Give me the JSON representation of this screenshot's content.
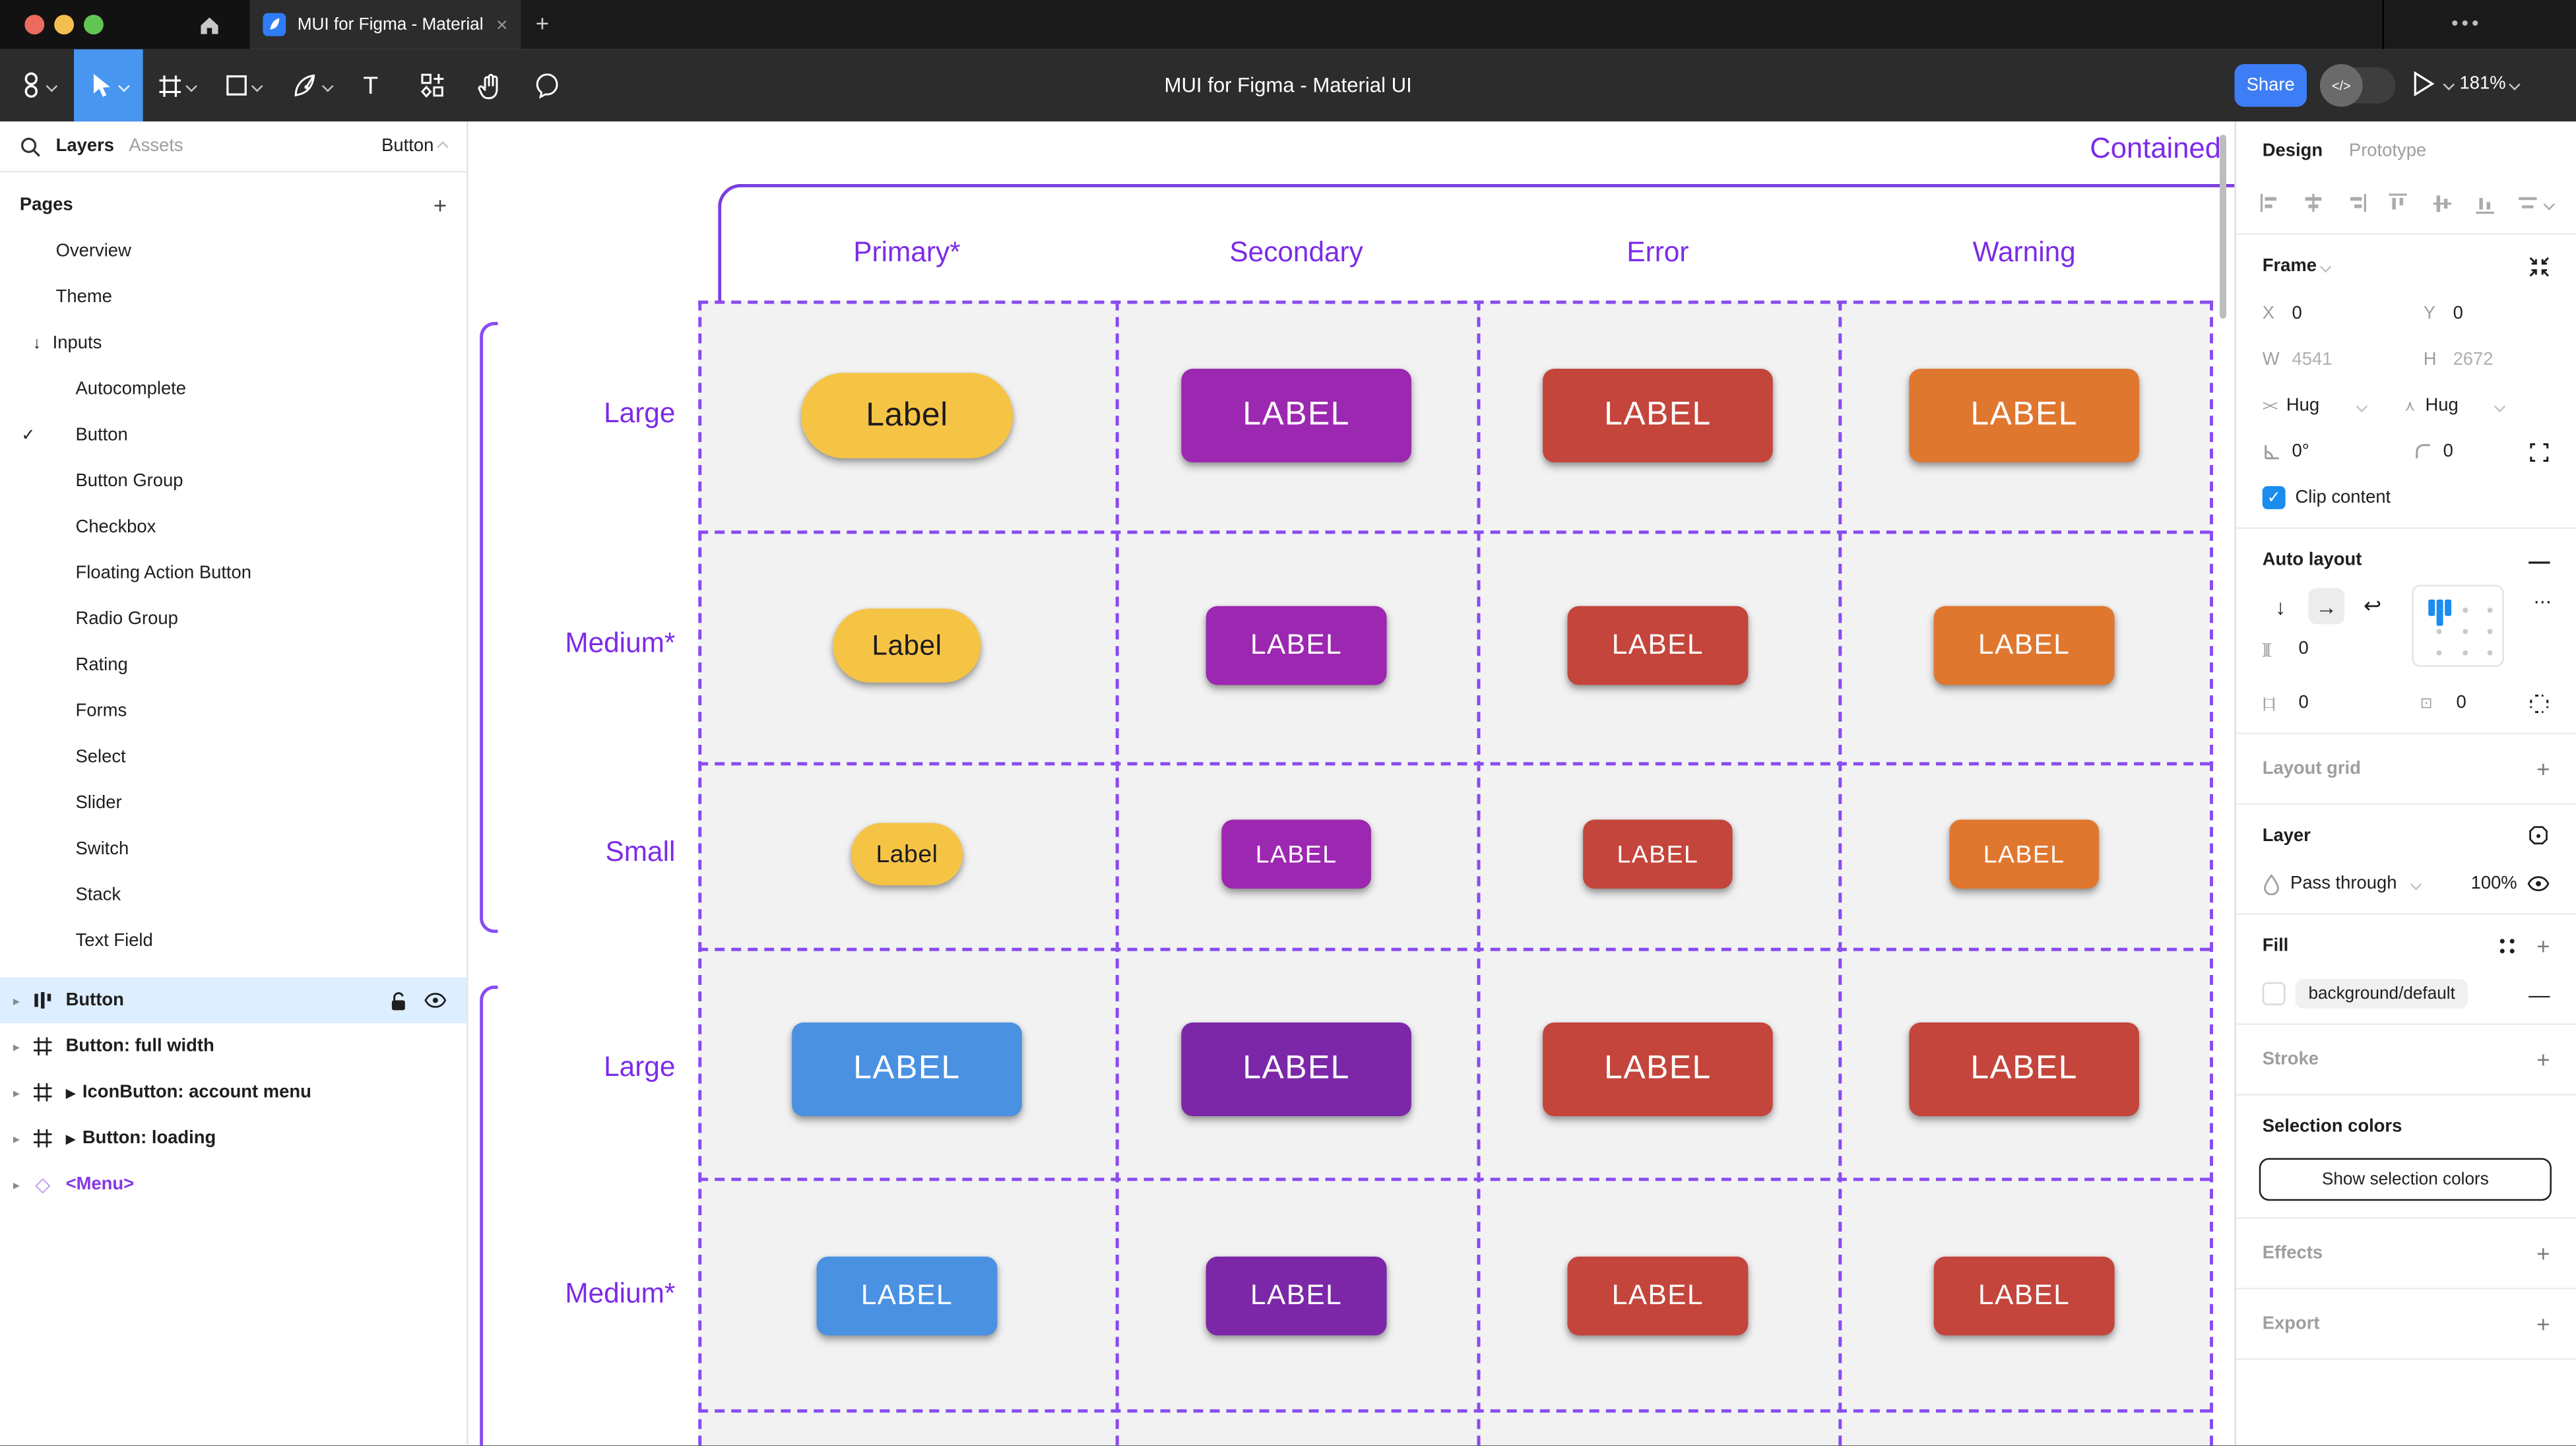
{
  "window": {
    "tab_title": "MUI for Figma - Material UI",
    "toolbar_title": "MUI for Figma - Material UI",
    "share_label": "Share",
    "zoom_level": "181%",
    "close_glyph": "×",
    "new_tab_glyph": "+",
    "ellipsis_glyph": "•••",
    "traffic_colors": [
      "#ec6a5e",
      "#f5bf4f",
      "#61c554"
    ]
  },
  "left_panel": {
    "tab_layers": "Layers",
    "tab_assets": "Assets",
    "page_selector": "Button",
    "pages_title": "Pages",
    "add_page_glyph": "+",
    "pages": [
      {
        "label": "Overview",
        "level": 1
      },
      {
        "label": "Theme",
        "level": 1
      },
      {
        "label": "Inputs",
        "level": 1,
        "arrow": "↓"
      },
      {
        "label": "Autocomplete",
        "level": 2
      },
      {
        "label": "Button",
        "level": 2,
        "check": "✓"
      },
      {
        "label": "Button Group",
        "level": 2
      },
      {
        "label": "Checkbox",
        "level": 2
      },
      {
        "label": "Floating Action Button",
        "level": 2
      },
      {
        "label": "Radio Group",
        "level": 2
      },
      {
        "label": "Rating",
        "level": 2
      },
      {
        "label": "Forms",
        "level": 2
      },
      {
        "label": "Select",
        "level": 2
      },
      {
        "label": "Slider",
        "level": 2
      },
      {
        "label": "Switch",
        "level": 2
      },
      {
        "label": "Stack",
        "level": 2
      },
      {
        "label": "Text Field",
        "level": 2
      }
    ],
    "layers": [
      {
        "label": "Button",
        "icon": "autolayout",
        "selected": true
      },
      {
        "label": "Button: full width",
        "icon": "frame"
      },
      {
        "label": "IconButton: account menu",
        "icon": "frame",
        "triangle": "▶"
      },
      {
        "label": "Button: loading",
        "icon": "frame",
        "triangle": "▶"
      },
      {
        "label": "<Menu>",
        "icon": "diamond",
        "purple": true
      }
    ]
  },
  "canvas": {
    "frame_title": "Contained",
    "columns": [
      "Primary*",
      "Secondary",
      "Error",
      "Warning"
    ],
    "palette": {
      "yellow": "#F6C445",
      "yellow_text": "#1D1B20",
      "purple": "#9C27B0",
      "red": "#C4453B",
      "orange": "#E0772F",
      "blue": "#4A91E2",
      "dark_purple": "#7B27A8",
      "accent_text": "#7C2BE8",
      "dash": "#8A4BF0"
    },
    "rows": [
      {
        "label": "Large",
        "size": "lg",
        "buttons": [
          {
            "text": "Label",
            "color": "yellow",
            "pill": true
          },
          {
            "text": "LABEL",
            "color": "purple"
          },
          {
            "text": "LABEL",
            "color": "red"
          },
          {
            "text": "LABEL",
            "color": "orange"
          }
        ]
      },
      {
        "label": "Medium*",
        "size": "md",
        "buttons": [
          {
            "text": "Label",
            "color": "yellow",
            "pill": true
          },
          {
            "text": "LABEL",
            "color": "purple"
          },
          {
            "text": "LABEL",
            "color": "red"
          },
          {
            "text": "LABEL",
            "color": "orange"
          }
        ]
      },
      {
        "label": "Small",
        "size": "sm",
        "buttons": [
          {
            "text": "Label",
            "color": "yellow",
            "pill": true
          },
          {
            "text": "LABEL",
            "color": "purple"
          },
          {
            "text": "LABEL",
            "color": "red"
          },
          {
            "text": "LABEL",
            "color": "orange"
          }
        ]
      },
      {
        "label": "Large",
        "size": "lg",
        "buttons": [
          {
            "text": "LABEL",
            "color": "blue"
          },
          {
            "text": "LABEL",
            "color": "dark_purple"
          },
          {
            "text": "LABEL",
            "color": "red"
          },
          {
            "text": "LABEL",
            "color": "red"
          }
        ]
      },
      {
        "label": "Medium*",
        "size": "md",
        "buttons": [
          {
            "text": "LABEL",
            "color": "blue"
          },
          {
            "text": "LABEL",
            "color": "dark_purple"
          },
          {
            "text": "LABEL",
            "color": "red"
          },
          {
            "text": "LABEL",
            "color": "red"
          }
        ]
      }
    ]
  },
  "right_panel": {
    "tab_design": "Design",
    "tab_prototype": "Prototype",
    "frame": {
      "title": "Frame",
      "x_label": "X",
      "x_value": "0",
      "y_label": "Y",
      "y_value": "0",
      "w_label": "W",
      "w_value": "4541",
      "h_label": "H",
      "h_value": "2672",
      "hug_h": "Hug",
      "hug_v": "Hug",
      "rotation": "0°",
      "radius": "0",
      "clip_label": "Clip content"
    },
    "auto_layout": {
      "title": "Auto layout",
      "gap": "0",
      "pad_h": "0",
      "pad_v": "0"
    },
    "layout_grid_title": "Layout grid",
    "layer": {
      "title": "Layer",
      "blend_mode": "Pass through",
      "opacity": "100%"
    },
    "fill": {
      "title": "Fill",
      "token": "background/default"
    },
    "stroke_title": "Stroke",
    "selection_colors": {
      "title": "Selection colors",
      "button_label": "Show selection colors"
    },
    "effects_title": "Effects",
    "export_title": "Export"
  }
}
